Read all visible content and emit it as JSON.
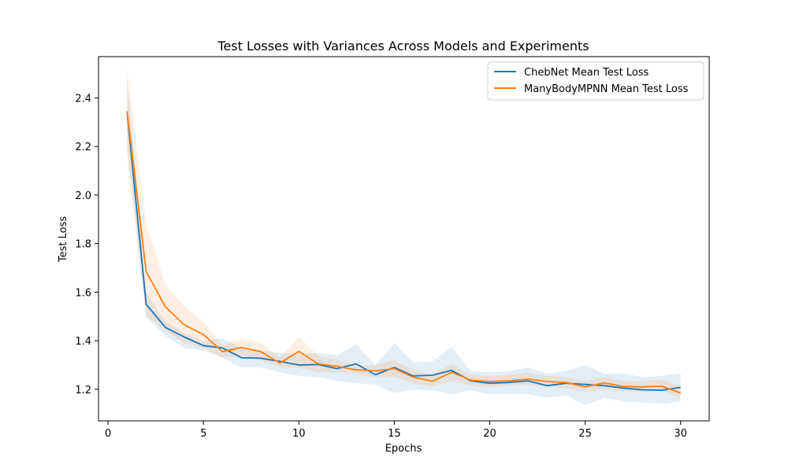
{
  "chart_data": {
    "type": "line",
    "title": "Test Losses with Variances Across Models and Experiments",
    "xlabel": "Epochs",
    "ylabel": "Test Loss",
    "xlim": [
      -0.5,
      31.5
    ],
    "ylim": [
      1.07,
      2.57
    ],
    "xticks": [
      0,
      5,
      10,
      15,
      20,
      25,
      30
    ],
    "yticks": [
      1.2,
      1.4,
      1.6,
      1.8,
      2.0,
      2.2,
      2.4
    ],
    "ytick_labels": [
      "1.2",
      "1.4",
      "1.6",
      "1.8",
      "2.0",
      "2.2",
      "2.4"
    ],
    "grid": false,
    "legend_position": "top-right",
    "x": [
      1,
      2,
      3,
      4,
      5,
      6,
      7,
      8,
      9,
      10,
      11,
      12,
      13,
      14,
      15,
      16,
      17,
      18,
      19,
      20,
      21,
      22,
      23,
      24,
      25,
      26,
      27,
      28,
      29,
      30
    ],
    "series": [
      {
        "name": "ChebNet Mean Test Loss",
        "color": "#1f77b4",
        "values": [
          2.34,
          1.55,
          1.455,
          1.415,
          1.38,
          1.37,
          1.33,
          1.328,
          1.315,
          1.3,
          1.302,
          1.285,
          1.305,
          1.26,
          1.29,
          1.255,
          1.258,
          1.278,
          1.235,
          1.225,
          1.228,
          1.235,
          1.215,
          1.225,
          1.22,
          1.215,
          1.205,
          1.198,
          1.196,
          1.208
        ],
        "lower": [
          2.2,
          1.5,
          1.42,
          1.37,
          1.36,
          1.33,
          1.29,
          1.29,
          1.27,
          1.255,
          1.25,
          1.235,
          1.225,
          1.22,
          1.185,
          1.2,
          1.195,
          1.18,
          1.195,
          1.18,
          1.18,
          1.18,
          1.165,
          1.175,
          1.135,
          1.165,
          1.15,
          1.145,
          1.14,
          1.15
        ],
        "upper": [
          2.48,
          1.6,
          1.48,
          1.43,
          1.4,
          1.41,
          1.37,
          1.36,
          1.35,
          1.345,
          1.35,
          1.34,
          1.385,
          1.3,
          1.39,
          1.31,
          1.315,
          1.375,
          1.275,
          1.27,
          1.275,
          1.29,
          1.265,
          1.275,
          1.3,
          1.265,
          1.265,
          1.25,
          1.255,
          1.265
        ]
      },
      {
        "name": "ManyBodyMPNN Mean Test Loss",
        "color": "#ff7f0e",
        "values": [
          2.345,
          1.685,
          1.54,
          1.465,
          1.425,
          1.355,
          1.372,
          1.355,
          1.308,
          1.356,
          1.305,
          1.295,
          1.28,
          1.276,
          1.285,
          1.25,
          1.233,
          1.27,
          1.238,
          1.232,
          1.235,
          1.242,
          1.232,
          1.228,
          1.21,
          1.226,
          1.212,
          1.21,
          1.213,
          1.185
        ],
        "lower": [
          2.17,
          1.5,
          1.44,
          1.39,
          1.37,
          1.33,
          1.34,
          1.32,
          1.29,
          1.29,
          1.27,
          1.27,
          1.26,
          1.25,
          1.25,
          1.225,
          1.21,
          1.235,
          1.215,
          1.21,
          1.215,
          1.22,
          1.21,
          1.205,
          1.19,
          1.2,
          1.19,
          1.19,
          1.195,
          1.165
        ],
        "upper": [
          2.52,
          1.88,
          1.63,
          1.54,
          1.48,
          1.38,
          1.41,
          1.39,
          1.33,
          1.415,
          1.34,
          1.32,
          1.3,
          1.3,
          1.32,
          1.28,
          1.26,
          1.305,
          1.26,
          1.255,
          1.26,
          1.27,
          1.255,
          1.25,
          1.235,
          1.25,
          1.235,
          1.235,
          1.24,
          1.215
        ]
      }
    ]
  }
}
